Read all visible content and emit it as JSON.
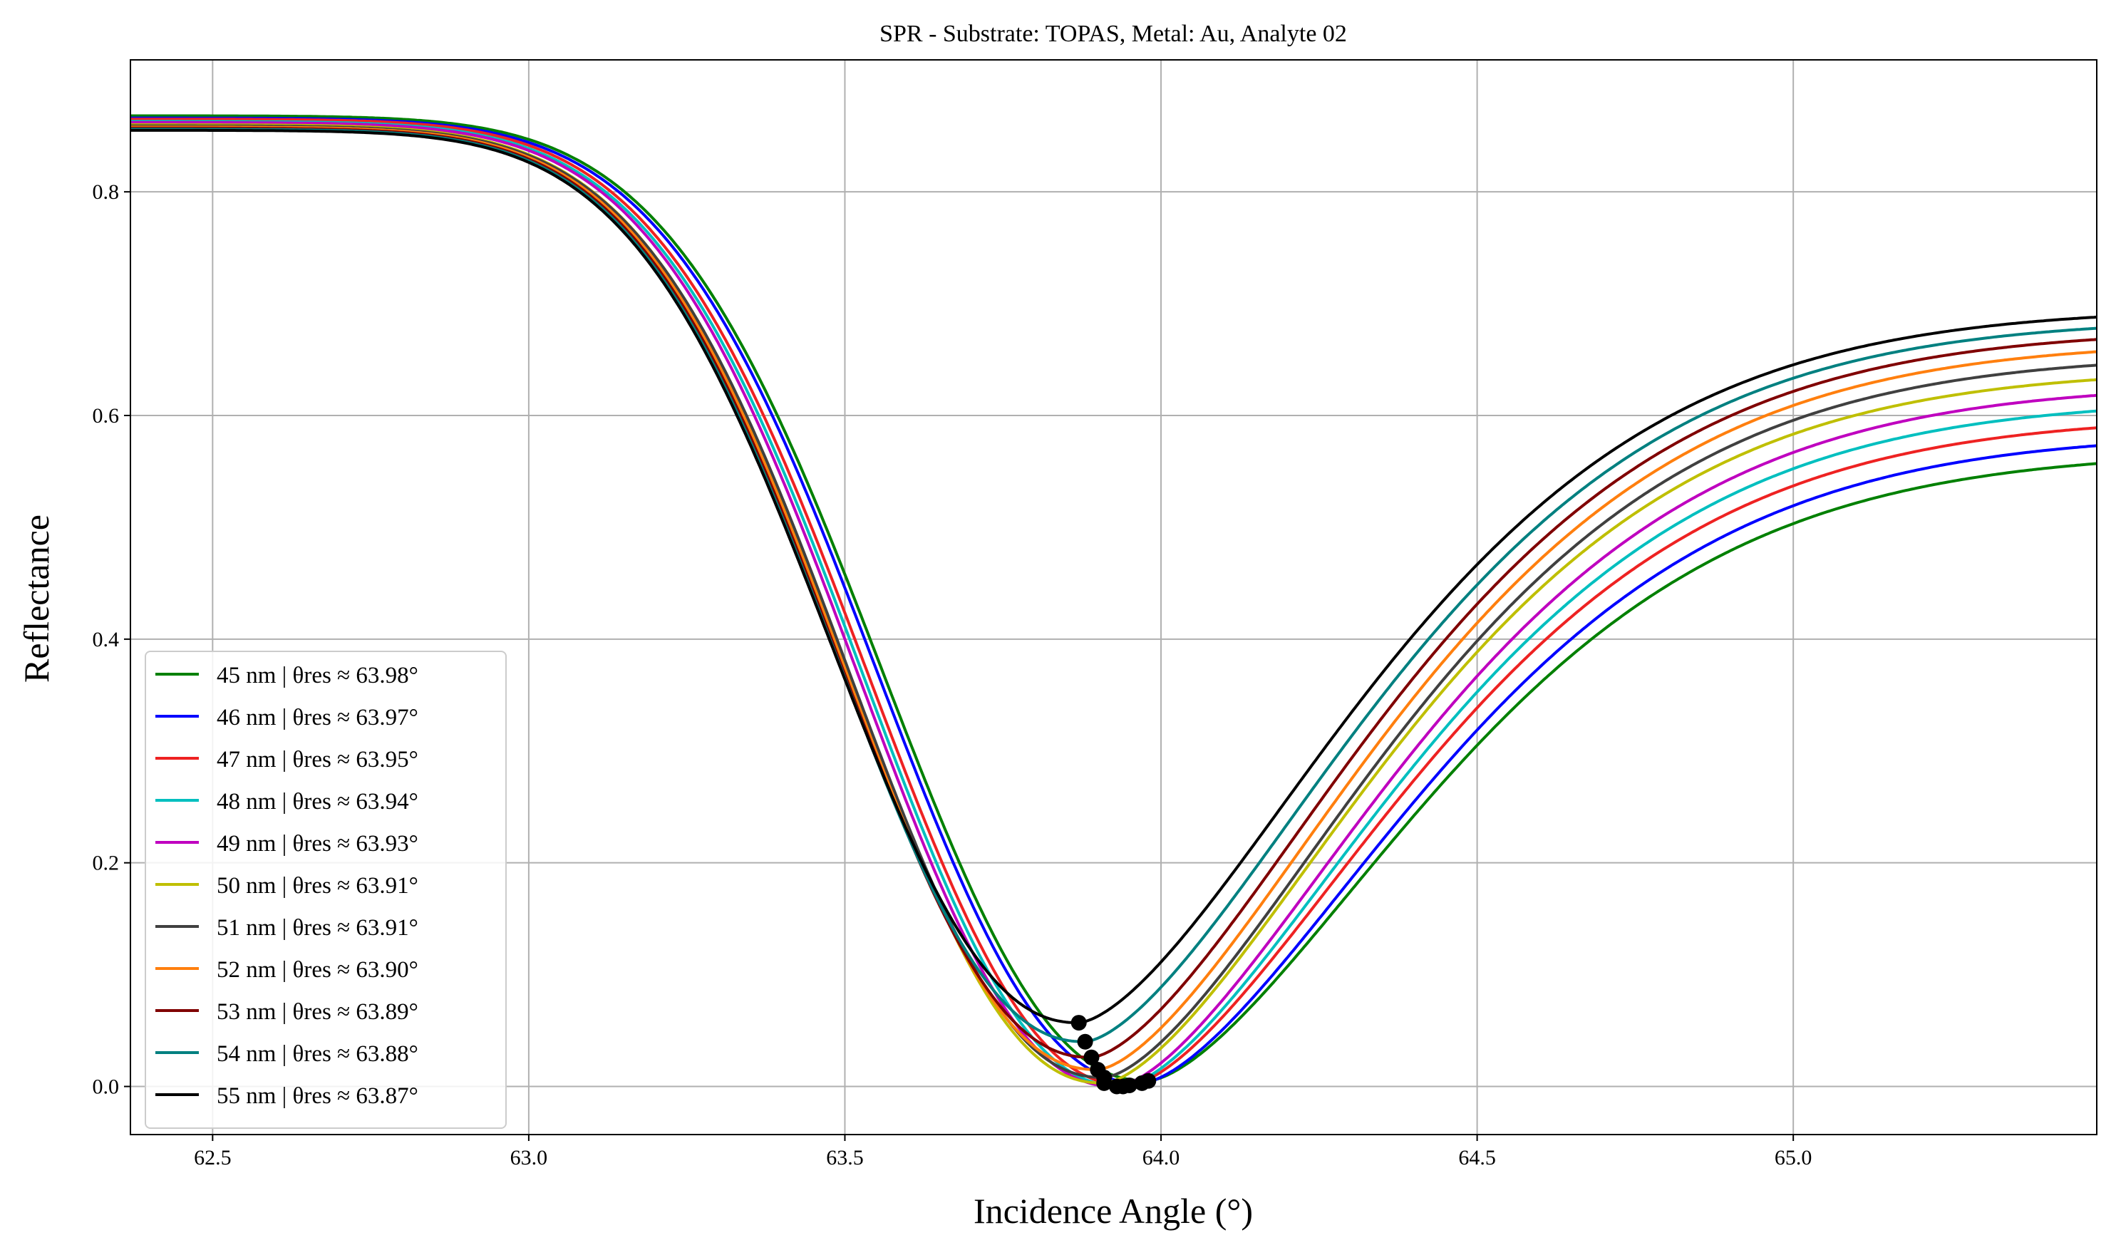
{
  "chart_data": {
    "type": "line",
    "title": "SPR - Substrate: TOPAS, Metal: Au, Analyte 02",
    "xlabel": "Incidence Angle (°)",
    "ylabel": "Reflectance",
    "xlim": [
      62.37,
      65.48
    ],
    "ylim": [
      -0.043,
      0.918
    ],
    "xticks": [
      62.5,
      63.0,
      63.5,
      64.0,
      64.5,
      65.0
    ],
    "xtick_labels": [
      "62.5",
      "63.0",
      "63.5",
      "64.0",
      "64.5",
      "65.0"
    ],
    "yticks": [
      0.0,
      0.2,
      0.4,
      0.6,
      0.8
    ],
    "ytick_labels": [
      "0.0",
      "0.2",
      "0.4",
      "0.6",
      "0.8"
    ],
    "grid": true,
    "legend_position": "lower-left",
    "series": [
      {
        "name": "45 nm | θres ≈ 63.98°",
        "color": "#008000",
        "theta_res": 63.98,
        "r_min": 0.005,
        "r_left": 0.868,
        "r_right": 0.557
      },
      {
        "name": "46 nm | θres ≈ 63.97°",
        "color": "#0000ff",
        "theta_res": 63.97,
        "r_min": 0.003,
        "r_left": 0.866,
        "r_right": 0.573
      },
      {
        "name": "47 nm | θres ≈ 63.95°",
        "color": "#ee2222",
        "theta_res": 63.95,
        "r_min": 0.001,
        "r_left": 0.865,
        "r_right": 0.589
      },
      {
        "name": "48 nm | θres ≈ 63.94°",
        "color": "#00bfbf",
        "theta_res": 63.94,
        "r_min": 0.0,
        "r_left": 0.863,
        "r_right": 0.604
      },
      {
        "name": "49 nm | θres ≈ 63.93°",
        "color": "#bf00bf",
        "theta_res": 63.93,
        "r_min": 0.0,
        "r_left": 0.862,
        "r_right": 0.618
      },
      {
        "name": "50 nm | θres ≈ 63.91°",
        "color": "#bfbf00",
        "theta_res": 63.91,
        "r_min": 0.003,
        "r_left": 0.86,
        "r_right": 0.632
      },
      {
        "name": "51 nm | θres ≈ 63.91°",
        "color": "#404040",
        "theta_res": 63.91,
        "r_min": 0.008,
        "r_left": 0.859,
        "r_right": 0.645
      },
      {
        "name": "52 nm | θres ≈ 63.90°",
        "color": "#ff7f0e",
        "theta_res": 63.9,
        "r_min": 0.015,
        "r_left": 0.858,
        "r_right": 0.657
      },
      {
        "name": "53 nm | θres ≈ 63.89°",
        "color": "#800000",
        "theta_res": 63.89,
        "r_min": 0.026,
        "r_left": 0.857,
        "r_right": 0.668
      },
      {
        "name": "54 nm | θres ≈ 63.88°",
        "color": "#008080",
        "theta_res": 63.88,
        "r_min": 0.04,
        "r_left": 0.856,
        "r_right": 0.678
      },
      {
        "name": "55 nm | θres ≈ 63.87°",
        "color": "#000000",
        "theta_res": 63.87,
        "r_min": 0.057,
        "r_left": 0.855,
        "r_right": 0.688
      }
    ]
  }
}
